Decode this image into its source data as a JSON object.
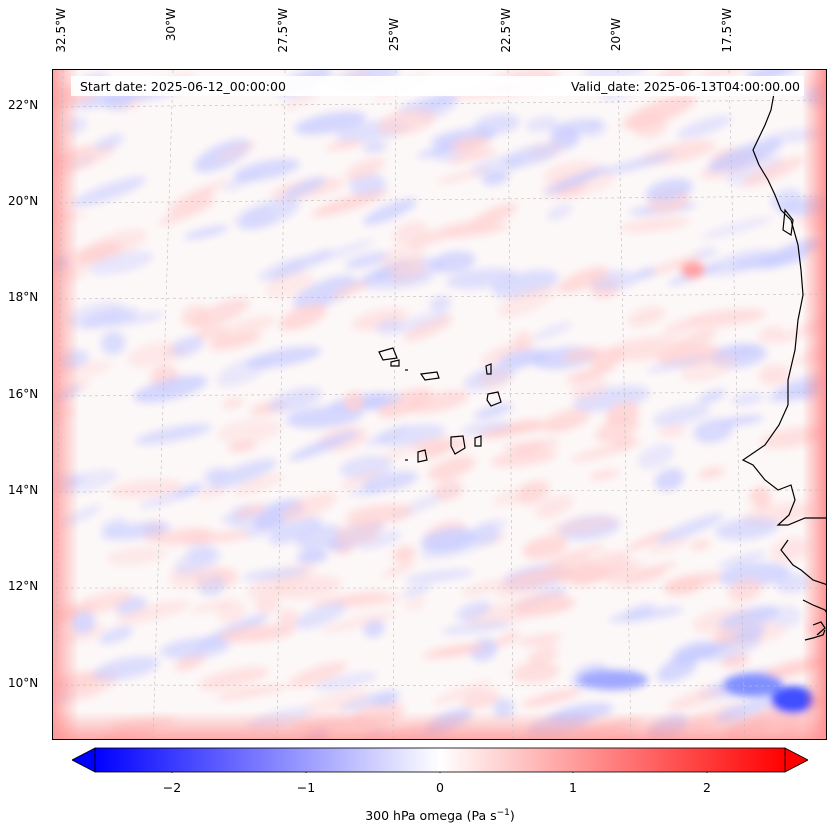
{
  "map": {
    "start_date": "Start date: 2025-06-12_00:00:00",
    "valid_date": "Valid_date: 2025-06-13T04:00:00.00",
    "lon_labels": [
      "32.5°W",
      "30°W",
      "27.5°W",
      "25°W",
      "22.5°W",
      "20°W",
      "17.5°W"
    ],
    "lat_labels": [
      "22°N",
      "20°N",
      "18°N",
      "16°N",
      "14°N",
      "12°N",
      "10°N"
    ]
  },
  "colorbar": {
    "ticks": [
      "−2",
      "−1",
      "0",
      "1",
      "2"
    ],
    "label": "300 hPa omega (Pa s",
    "label_sup": "−1",
    "label_end": ")",
    "min": -2.6,
    "max": 2.6,
    "colors": {
      "low": "#0000ff",
      "mid": "#ffffff",
      "high": "#ff0000"
    }
  }
}
